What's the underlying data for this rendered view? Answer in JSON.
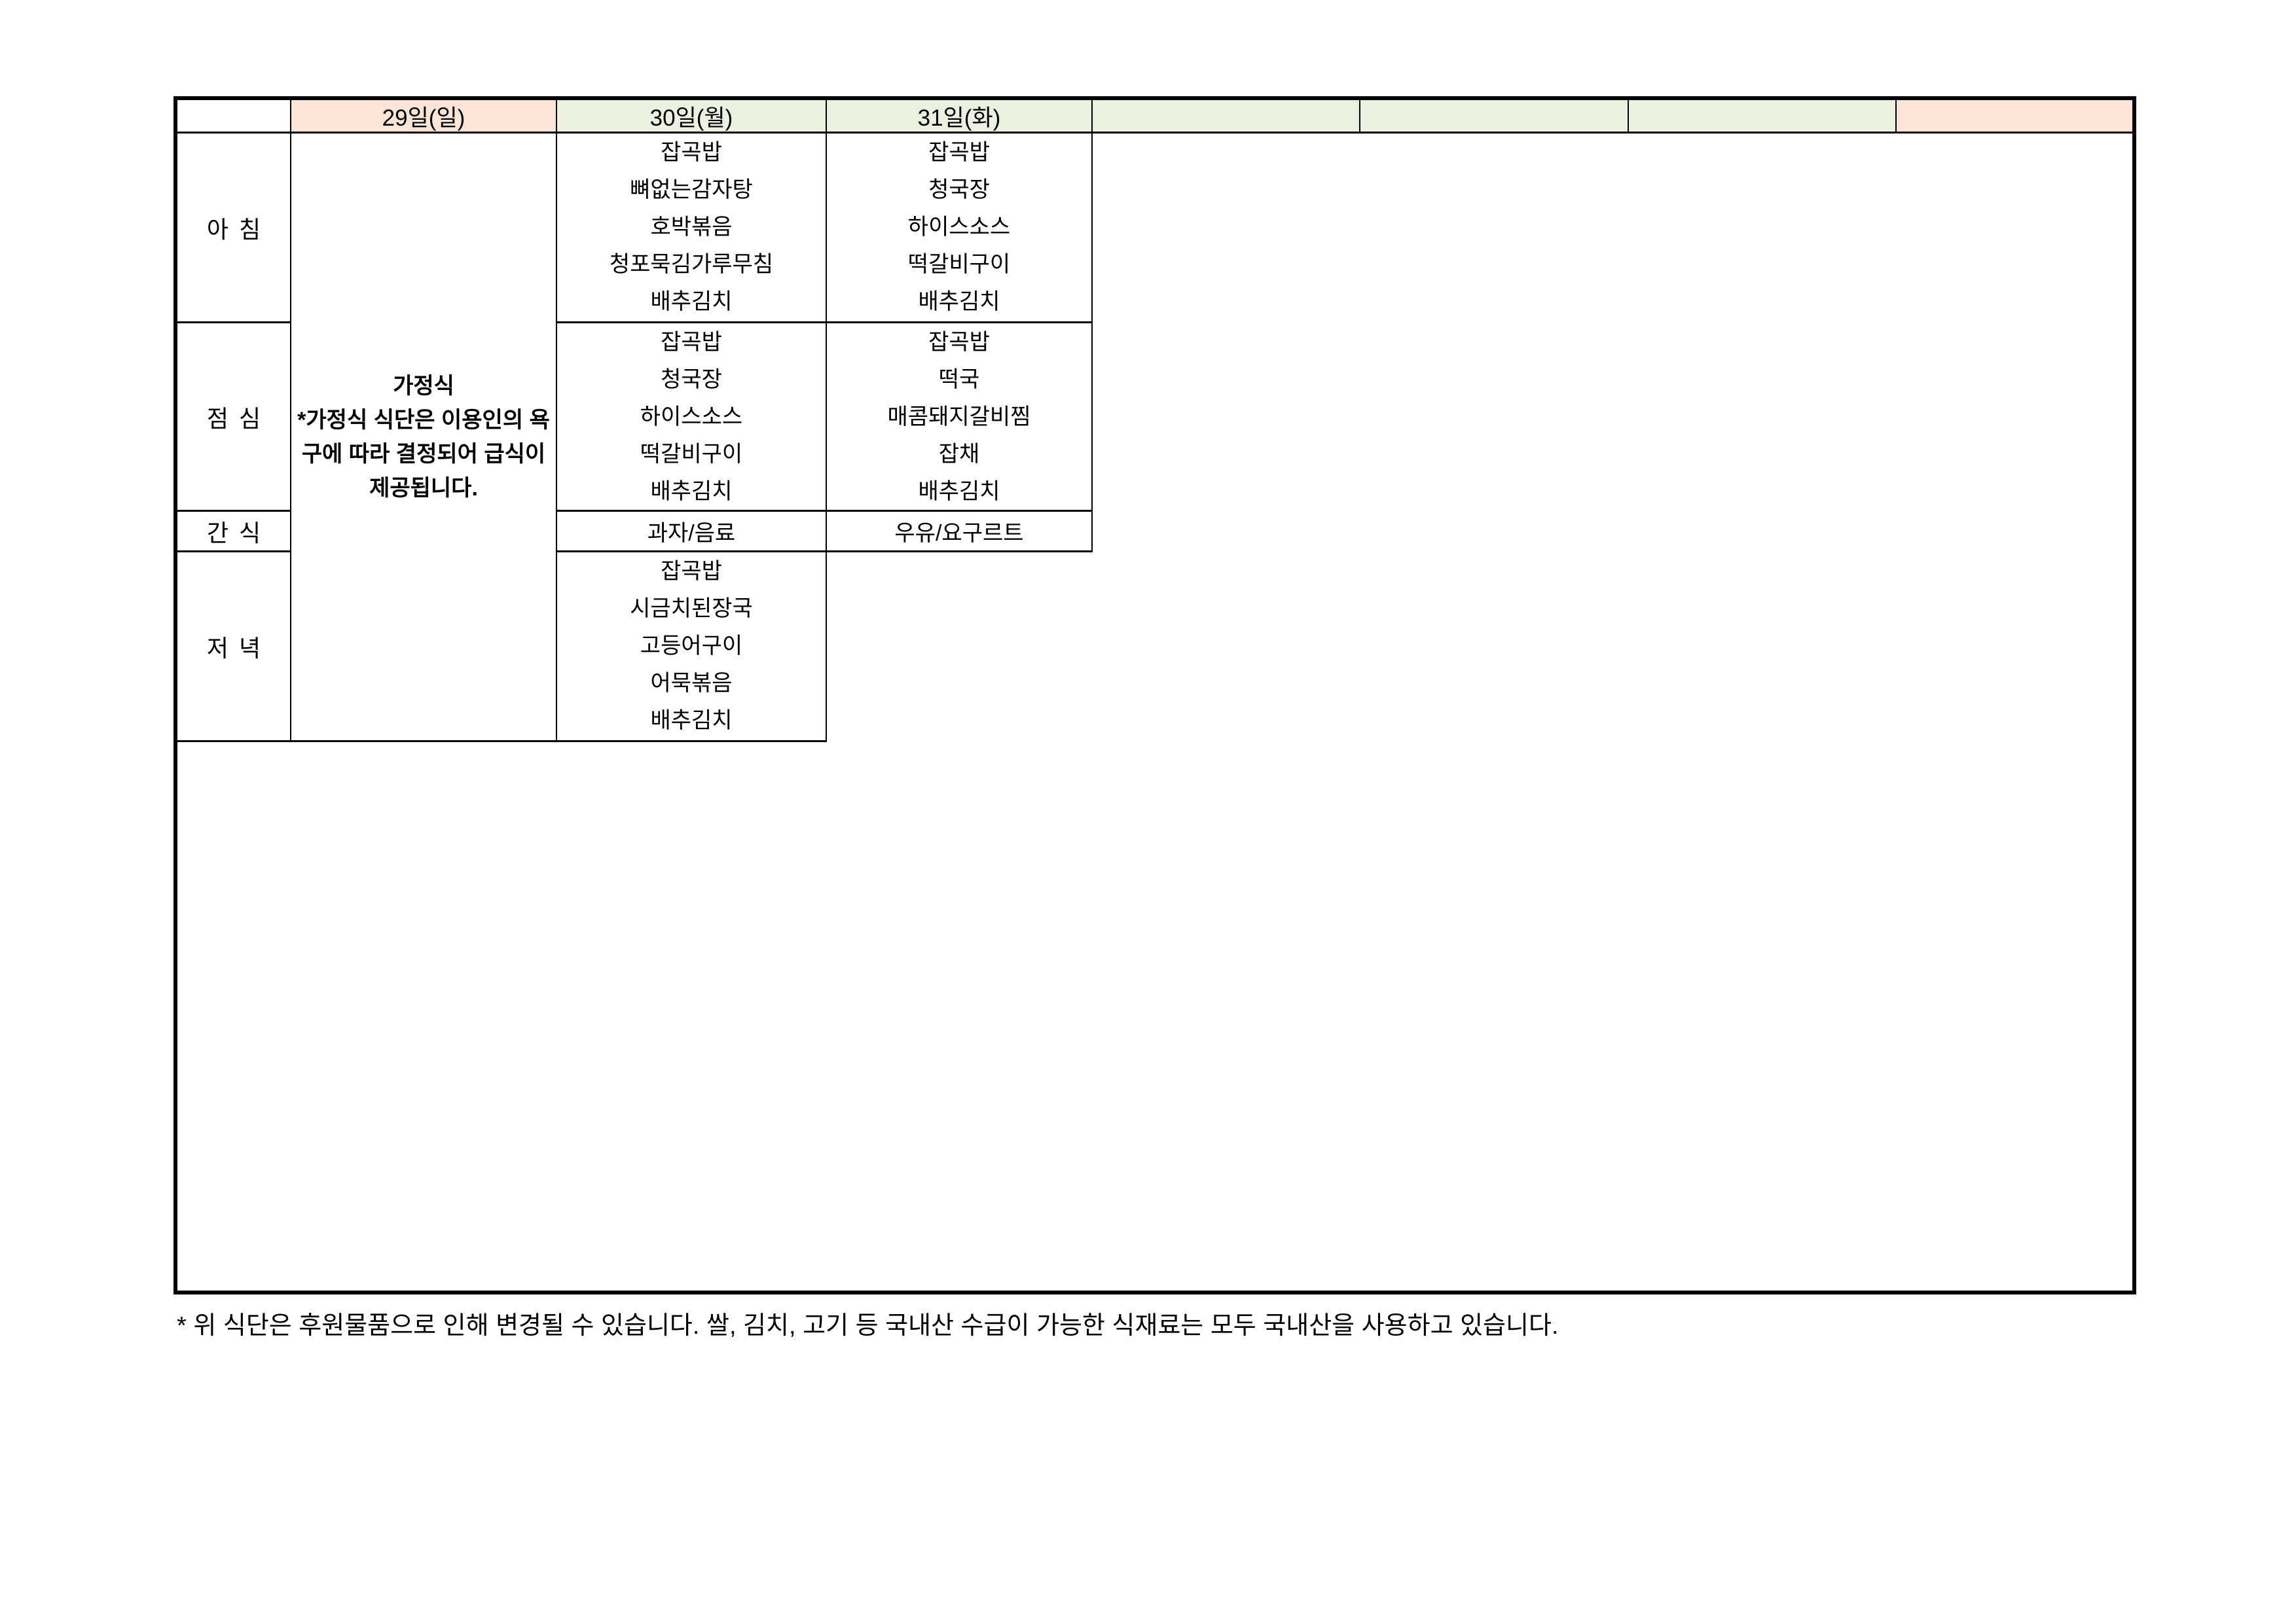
{
  "colors": {
    "header_sunday_bg": "#FCE4D6",
    "header_weekday_bg": "#EBF1DE",
    "border": "#000000",
    "text": "#000000",
    "page_bg": "#FFFFFF"
  },
  "table": {
    "columns": [
      {
        "id": "row-labels",
        "label": ""
      },
      {
        "id": "day29",
        "label": "29일(일)"
      },
      {
        "id": "day30",
        "label": "30일(월)"
      },
      {
        "id": "day31",
        "label": "31일(화)"
      },
      {
        "id": "extra1",
        "label": ""
      },
      {
        "id": "extra2",
        "label": ""
      },
      {
        "id": "extra3",
        "label": ""
      },
      {
        "id": "extra4",
        "label": ""
      }
    ],
    "row_labels": [
      "아침",
      "점심",
      "간식",
      "저녁"
    ],
    "day29_note": {
      "title": "가정식",
      "body": "*가정식 식단은 이용인의 욕구에 따라 결정되어 급식이 제공됩니다."
    },
    "menus": {
      "day30": {
        "breakfast": [
          "잡곡밥",
          "뼈없는감자탕",
          "호박볶음",
          "청포묵김가루무침",
          "배추김치"
        ],
        "lunch": [
          "잡곡밥",
          "청국장",
          "하이스소스",
          "떡갈비구이",
          "배추김치"
        ],
        "snack": "과자/음료",
        "dinner": [
          "잡곡밥",
          "시금치된장국",
          "고등어구이",
          "어묵볶음",
          "배추김치"
        ]
      },
      "day31": {
        "breakfast": [
          "잡곡밥",
          "청국장",
          "하이스소스",
          "떡갈비구이",
          "배추김치"
        ],
        "lunch": [
          "잡곡밥",
          "떡국",
          "매콤돼지갈비찜",
          "잡채",
          "배추김치"
        ],
        "snack": "우유/요구르트"
      }
    }
  },
  "page": {
    "footnote": "* 위 식단은 후원물품으로 인해 변경될 수 있습니다. 쌀, 김치, 고기 등 국내산 수급이 가능한 식재료는 모두 국내산을 사용하고 있습니다."
  }
}
